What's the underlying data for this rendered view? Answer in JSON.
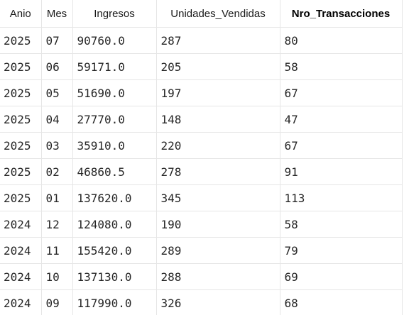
{
  "table": {
    "columns": [
      {
        "label": "Anio"
      },
      {
        "label": "Mes"
      },
      {
        "label": "Ingresos"
      },
      {
        "label": "Unidades_Vendidas"
      },
      {
        "label": "Nro_Transacciones",
        "sorted": true
      }
    ],
    "rows": [
      [
        "2025",
        "07",
        "90760.0",
        "287",
        "80"
      ],
      [
        "2025",
        "06",
        "59171.0",
        "205",
        "58"
      ],
      [
        "2025",
        "05",
        "51690.0",
        "197",
        "67"
      ],
      [
        "2025",
        "04",
        "27770.0",
        "148",
        "47"
      ],
      [
        "2025",
        "03",
        "35910.0",
        "220",
        "67"
      ],
      [
        "2025",
        "02",
        "46860.5",
        "278",
        "91"
      ],
      [
        "2025",
        "01",
        "137620.0",
        "345",
        "113"
      ],
      [
        "2024",
        "12",
        "124080.0",
        "190",
        "58"
      ],
      [
        "2024",
        "11",
        "155420.0",
        "289",
        "79"
      ],
      [
        "2024",
        "10",
        "137130.0",
        "288",
        "69"
      ],
      [
        "2024",
        "09",
        "117990.0",
        "326",
        "68"
      ]
    ]
  }
}
